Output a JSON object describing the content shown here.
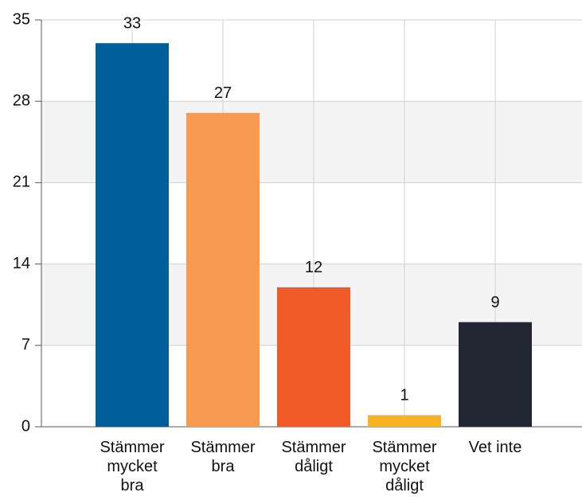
{
  "chart_data": {
    "type": "bar",
    "categories": [
      "Stämmer mycket bra",
      "Stämmer bra",
      "Stämmer dåligt",
      "Stämmer mycket dåligt",
      "Vet inte"
    ],
    "values": [
      33,
      27,
      12,
      1,
      9
    ],
    "colors": [
      "#005f99",
      "#f79a4f",
      "#f05a28",
      "#f8b323",
      "#222633"
    ],
    "ylim": [
      0,
      35
    ],
    "yticks": [
      0,
      7,
      14,
      21,
      28,
      35
    ],
    "grid": true
  }
}
